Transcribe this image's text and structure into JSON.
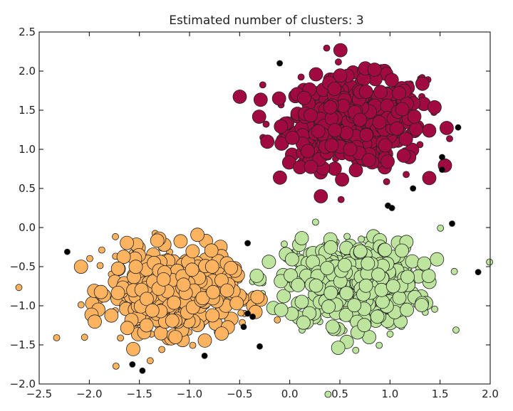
{
  "chart_data": {
    "type": "scatter",
    "title": "Estimated number of clusters: 3",
    "xlabel": "",
    "ylabel": "",
    "xlim": [
      -2.5,
      2.0
    ],
    "ylim": [
      -2.0,
      2.5
    ],
    "xticks": [
      "−2.5",
      "−2.0",
      "−1.5",
      "−1.0",
      "−0.5",
      "0.0",
      "0.5",
      "1.0",
      "1.5",
      "2.0"
    ],
    "yticks": [
      "2.5",
      "2.0",
      "1.5",
      "1.0",
      "0.5",
      "0.0",
      "−0.5",
      "−1.0",
      "−1.5",
      "−2.0"
    ],
    "grid": false,
    "clusters": [
      {
        "center": [
          0.65,
          1.35
        ],
        "spread": [
          0.33,
          0.28
        ],
        "core_points": 420,
        "border_points": 90,
        "color": "#a10a40"
      },
      {
        "center": [
          0.63,
          -0.72
        ],
        "spread": [
          0.32,
          0.26
        ],
        "core_points": 420,
        "border_points": 90,
        "color": "#bde59e"
      },
      {
        "center": [
          -1.18,
          -0.82
        ],
        "spread": [
          0.3,
          0.25
        ],
        "core_points": 420,
        "border_points": 90,
        "color": "#fdb35f"
      }
    ],
    "noise": {
      "color": "#000000",
      "points": [
        [
          -0.1,
          2.1
        ],
        [
          1.68,
          1.28
        ],
        [
          1.52,
          0.9
        ],
        [
          1.52,
          0.74
        ],
        [
          1.23,
          0.5
        ],
        [
          0.98,
          0.28
        ],
        [
          1.02,
          0.25
        ],
        [
          1.62,
          0.05
        ],
        [
          -2.22,
          -0.31
        ],
        [
          -0.42,
          -0.2
        ],
        [
          1.88,
          -0.57
        ],
        [
          -0.42,
          -1.1
        ],
        [
          -0.37,
          -1.14
        ],
        [
          -0.46,
          -1.27
        ],
        [
          -0.3,
          -1.52
        ],
        [
          -0.85,
          -1.64
        ],
        [
          -1.57,
          -1.75
        ],
        [
          -1.47,
          -1.83
        ]
      ]
    }
  }
}
